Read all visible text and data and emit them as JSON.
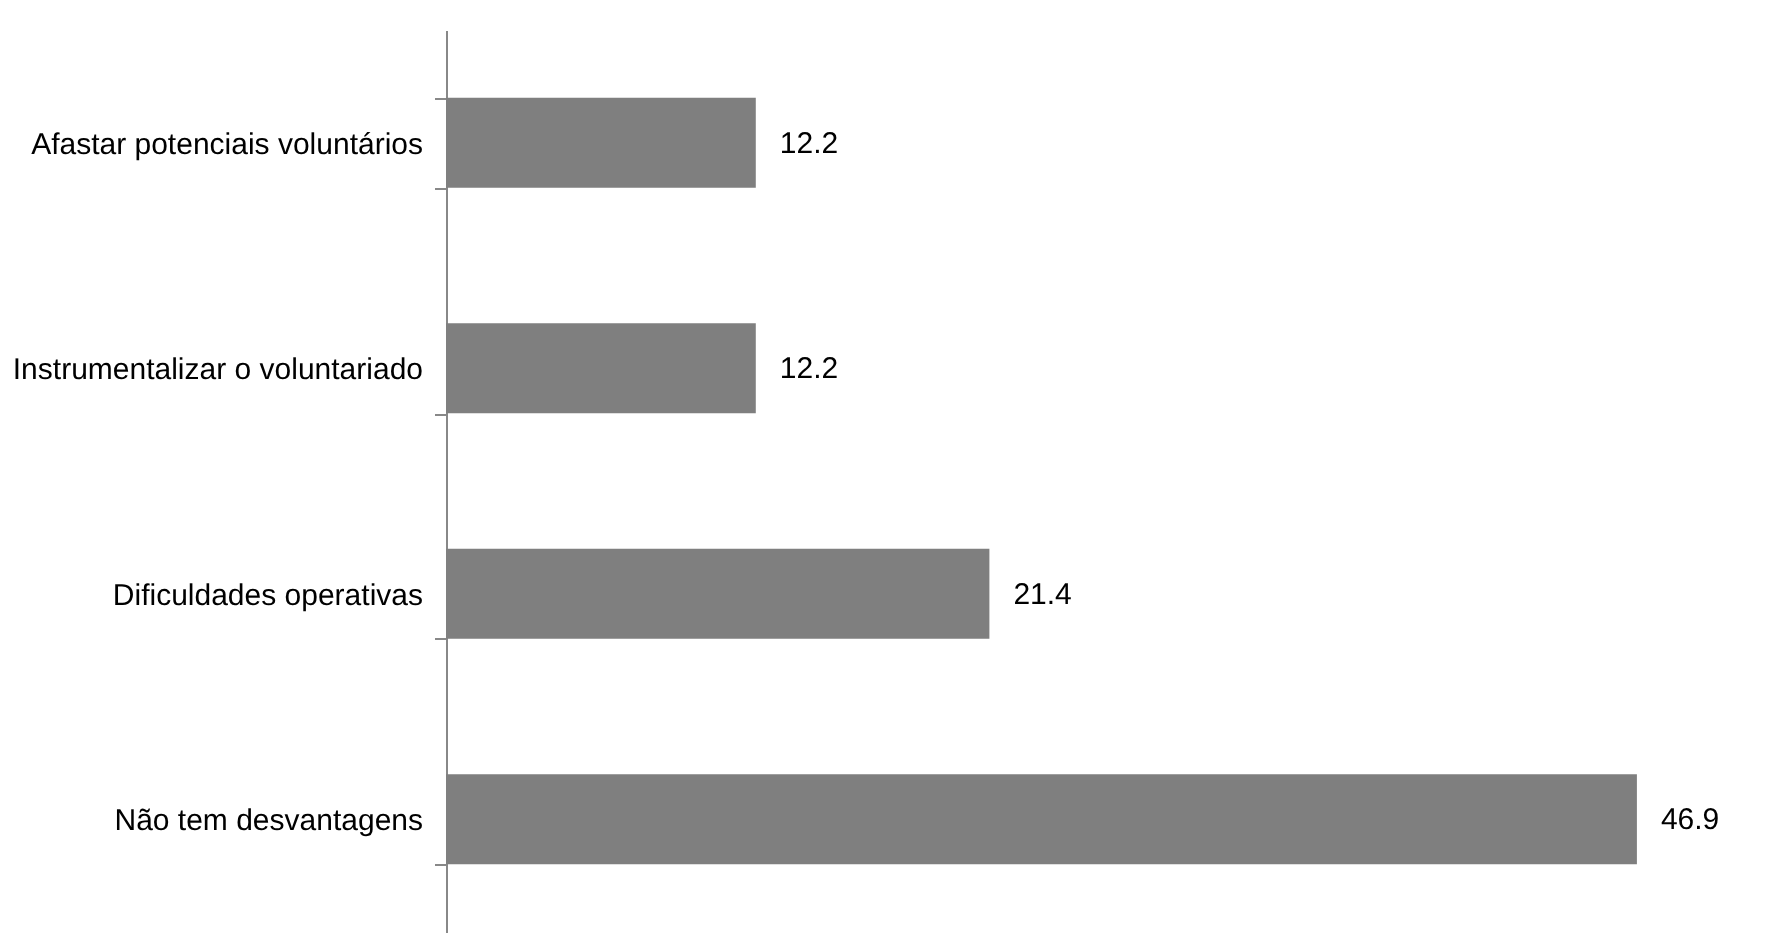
{
  "chart_data": {
    "type": "bar",
    "orientation": "horizontal",
    "categories": [
      "Afastar potenciais voluntários",
      "Instrumentalizar o voluntariado",
      "Dificuldades operativas",
      "Não tem desvantagens"
    ],
    "values": [
      12.2,
      12.2,
      21.4,
      46.9
    ],
    "color": "#7f7f7f",
    "data_labels": true,
    "grid": false
  }
}
